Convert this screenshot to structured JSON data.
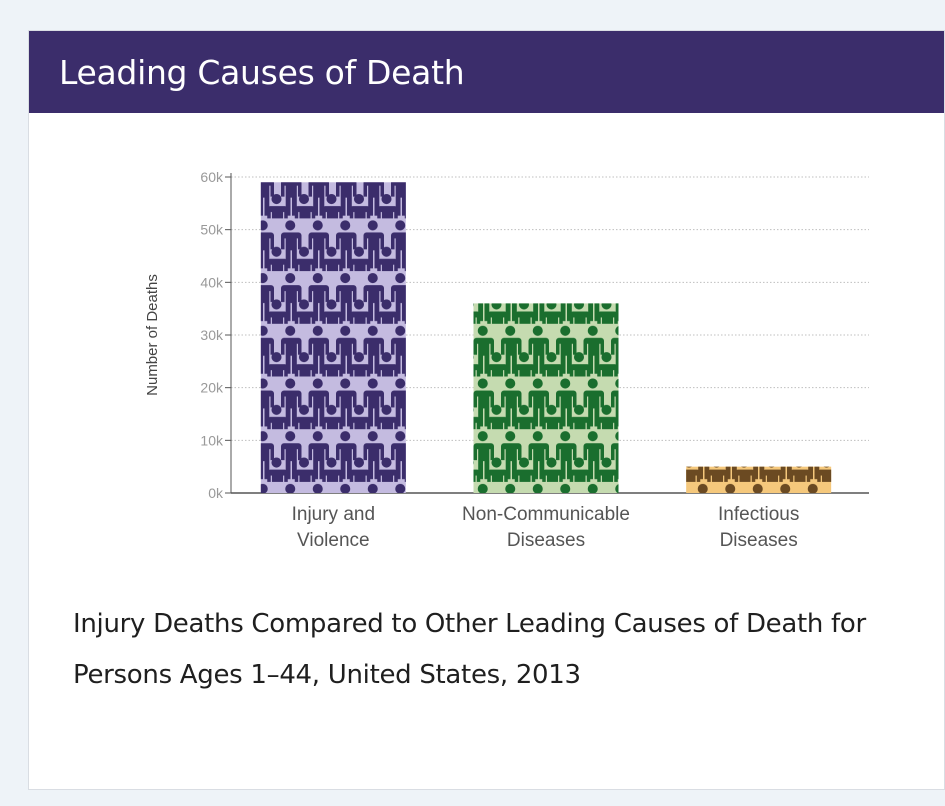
{
  "card": {
    "title": "Leading Causes of Death",
    "caption": "Injury Deaths Compared to Other Leading Causes of Death for Persons Ages 1–44, United States, 2013"
  },
  "colors": {
    "header_bg": "#3b2d6b",
    "series": [
      {
        "bar": "#c4bbe0",
        "figure": "#3b2d6b"
      },
      {
        "bar": "#c5dbb0",
        "figure": "#1a6e2e"
      },
      {
        "bar": "#f5c87c",
        "figure": "#6b4a22"
      }
    ],
    "gridline": "#bfbfbf",
    "axis": "#555555",
    "tick_text": "#999999"
  },
  "chart_data": {
    "type": "bar",
    "title": "",
    "ylabel": "Number of Deaths",
    "xlabel": "",
    "categories": [
      [
        "Injury and",
        "Violence"
      ],
      [
        "Non-Communicable",
        "Diseases"
      ],
      [
        "Infectious",
        "Diseases"
      ]
    ],
    "values": [
      59000,
      36000,
      5000
    ],
    "ylim": [
      0,
      60000
    ],
    "yticks": [
      0,
      10000,
      20000,
      30000,
      40000,
      50000,
      60000
    ],
    "ytick_labels": [
      "0k",
      "10k",
      "20k",
      "30k",
      "40k",
      "50k",
      "60k"
    ],
    "grid": true,
    "legend": "none"
  }
}
